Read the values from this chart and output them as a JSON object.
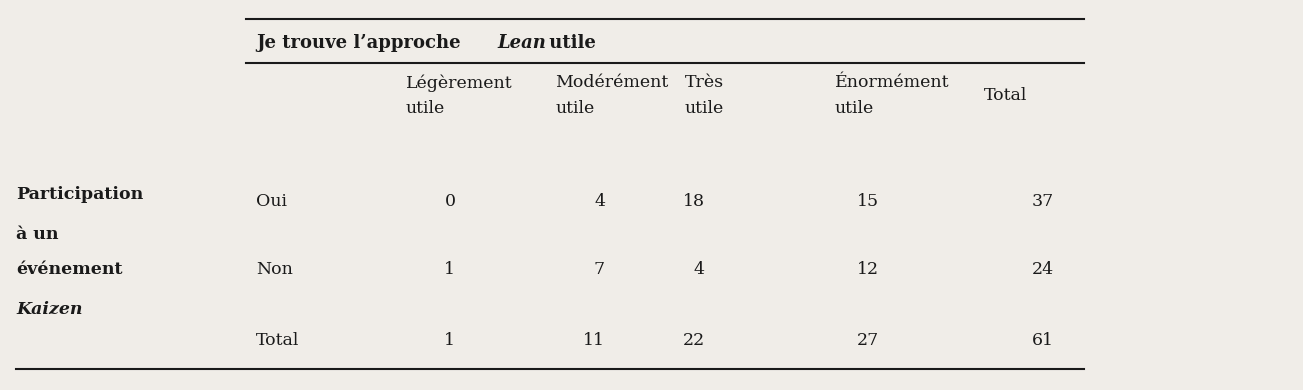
{
  "col_headers": [
    [
      "Légèrement",
      "utile"
    ],
    [
      "Modérément",
      "utile"
    ],
    [
      "Très",
      "utile"
    ],
    [
      "Énormément",
      "utile"
    ],
    [
      "Total",
      ""
    ]
  ],
  "row_labels_bold": [
    "Participation",
    "à un",
    "événement"
  ],
  "row_label_italic": "Kaizen",
  "row_sub_labels": [
    "Oui",
    "Non",
    "Total"
  ],
  "data": [
    [
      0,
      4,
      18,
      15,
      37
    ],
    [
      1,
      7,
      4,
      12,
      24
    ],
    [
      1,
      11,
      22,
      27,
      61
    ]
  ],
  "bg_color": "#f0ede8",
  "text_color": "#1a1a1a",
  "line_color": "#1a1a1a",
  "font_size": 12.5,
  "title_font_size": 13
}
